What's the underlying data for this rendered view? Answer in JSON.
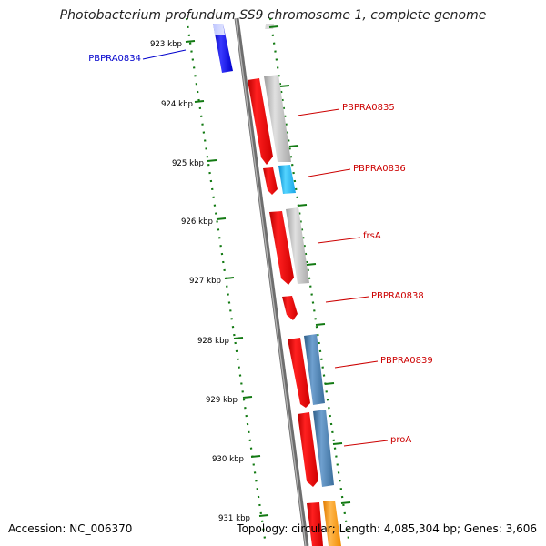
{
  "title": "Photobacterium profundum SS9 chromosome 1, complete genome",
  "footer": {
    "accession_label": "Accession:",
    "accession": "NC_006370",
    "topology_label": "Topology:",
    "topology": "circular",
    "length_label": "Length:",
    "length": "4,085,304 bp",
    "genes_label": "Genes:",
    "genes": "3,606"
  },
  "ticks": [
    {
      "label": "923 kbp",
      "kbp": 923
    },
    {
      "label": "924 kbp",
      "kbp": 924
    },
    {
      "label": "925 kbp",
      "kbp": 925
    },
    {
      "label": "926 kbp",
      "kbp": 926
    },
    {
      "label": "927 kbp",
      "kbp": 927
    },
    {
      "label": "928 kbp",
      "kbp": 928
    },
    {
      "label": "929 kbp",
      "kbp": 929
    },
    {
      "label": "930 kbp",
      "kbp": 930
    },
    {
      "label": "931 kbp",
      "kbp": 931
    }
  ],
  "genes": [
    {
      "name": "PBPRA0834",
      "side": "left",
      "color": "#0000cc"
    },
    {
      "name": "PBPRA0835",
      "side": "right",
      "color": "#cc0000"
    },
    {
      "name": "PBPRA0836",
      "side": "right",
      "color": "#cc0000"
    },
    {
      "name": "frsA",
      "side": "right",
      "color": "#cc0000"
    },
    {
      "name": "PBPRA0838",
      "side": "right",
      "color": "#cc0000"
    },
    {
      "name": "PBPRA0839",
      "side": "right",
      "color": "#cc0000"
    },
    {
      "name": "proA",
      "side": "right",
      "color": "#cc0000"
    }
  ],
  "colors": {
    "cds_red": "#e8000a",
    "cog_gray": "#bdbdbd",
    "cog_cyan": "#19b4ef",
    "cog_steel": "#4682b4",
    "cog_orange": "#ff9900",
    "forward_blue": "#0b0bee",
    "backbone": "#777777",
    "tick_green": "#137a13"
  }
}
